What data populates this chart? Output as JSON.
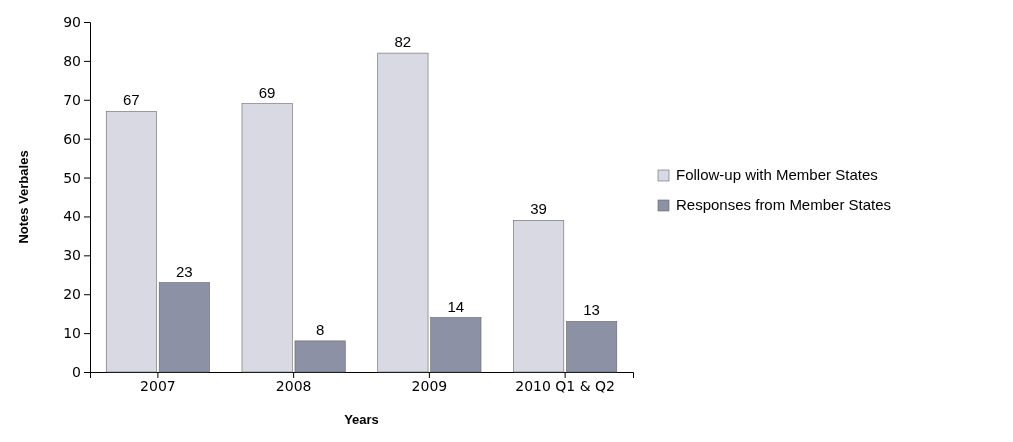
{
  "chart_data": {
    "type": "bar",
    "xlabel": "Years",
    "ylabel": "Notes Verbales",
    "categories": [
      "2007",
      "2008",
      "2009",
      "2010 Q1 & Q2"
    ],
    "series": [
      {
        "name": "Follow-up with Member States",
        "color": "#d9d9e3",
        "values": [
          67,
          69,
          82,
          39
        ]
      },
      {
        "name": "Responses from Member States",
        "color": "#8c91a6",
        "values": [
          23,
          8,
          14,
          13
        ]
      }
    ],
    "ylim": [
      0,
      90
    ],
    "yticks": [
      0,
      10,
      20,
      30,
      40,
      50,
      60,
      70,
      80,
      90
    ],
    "data_labels": true,
    "legend": "right"
  }
}
